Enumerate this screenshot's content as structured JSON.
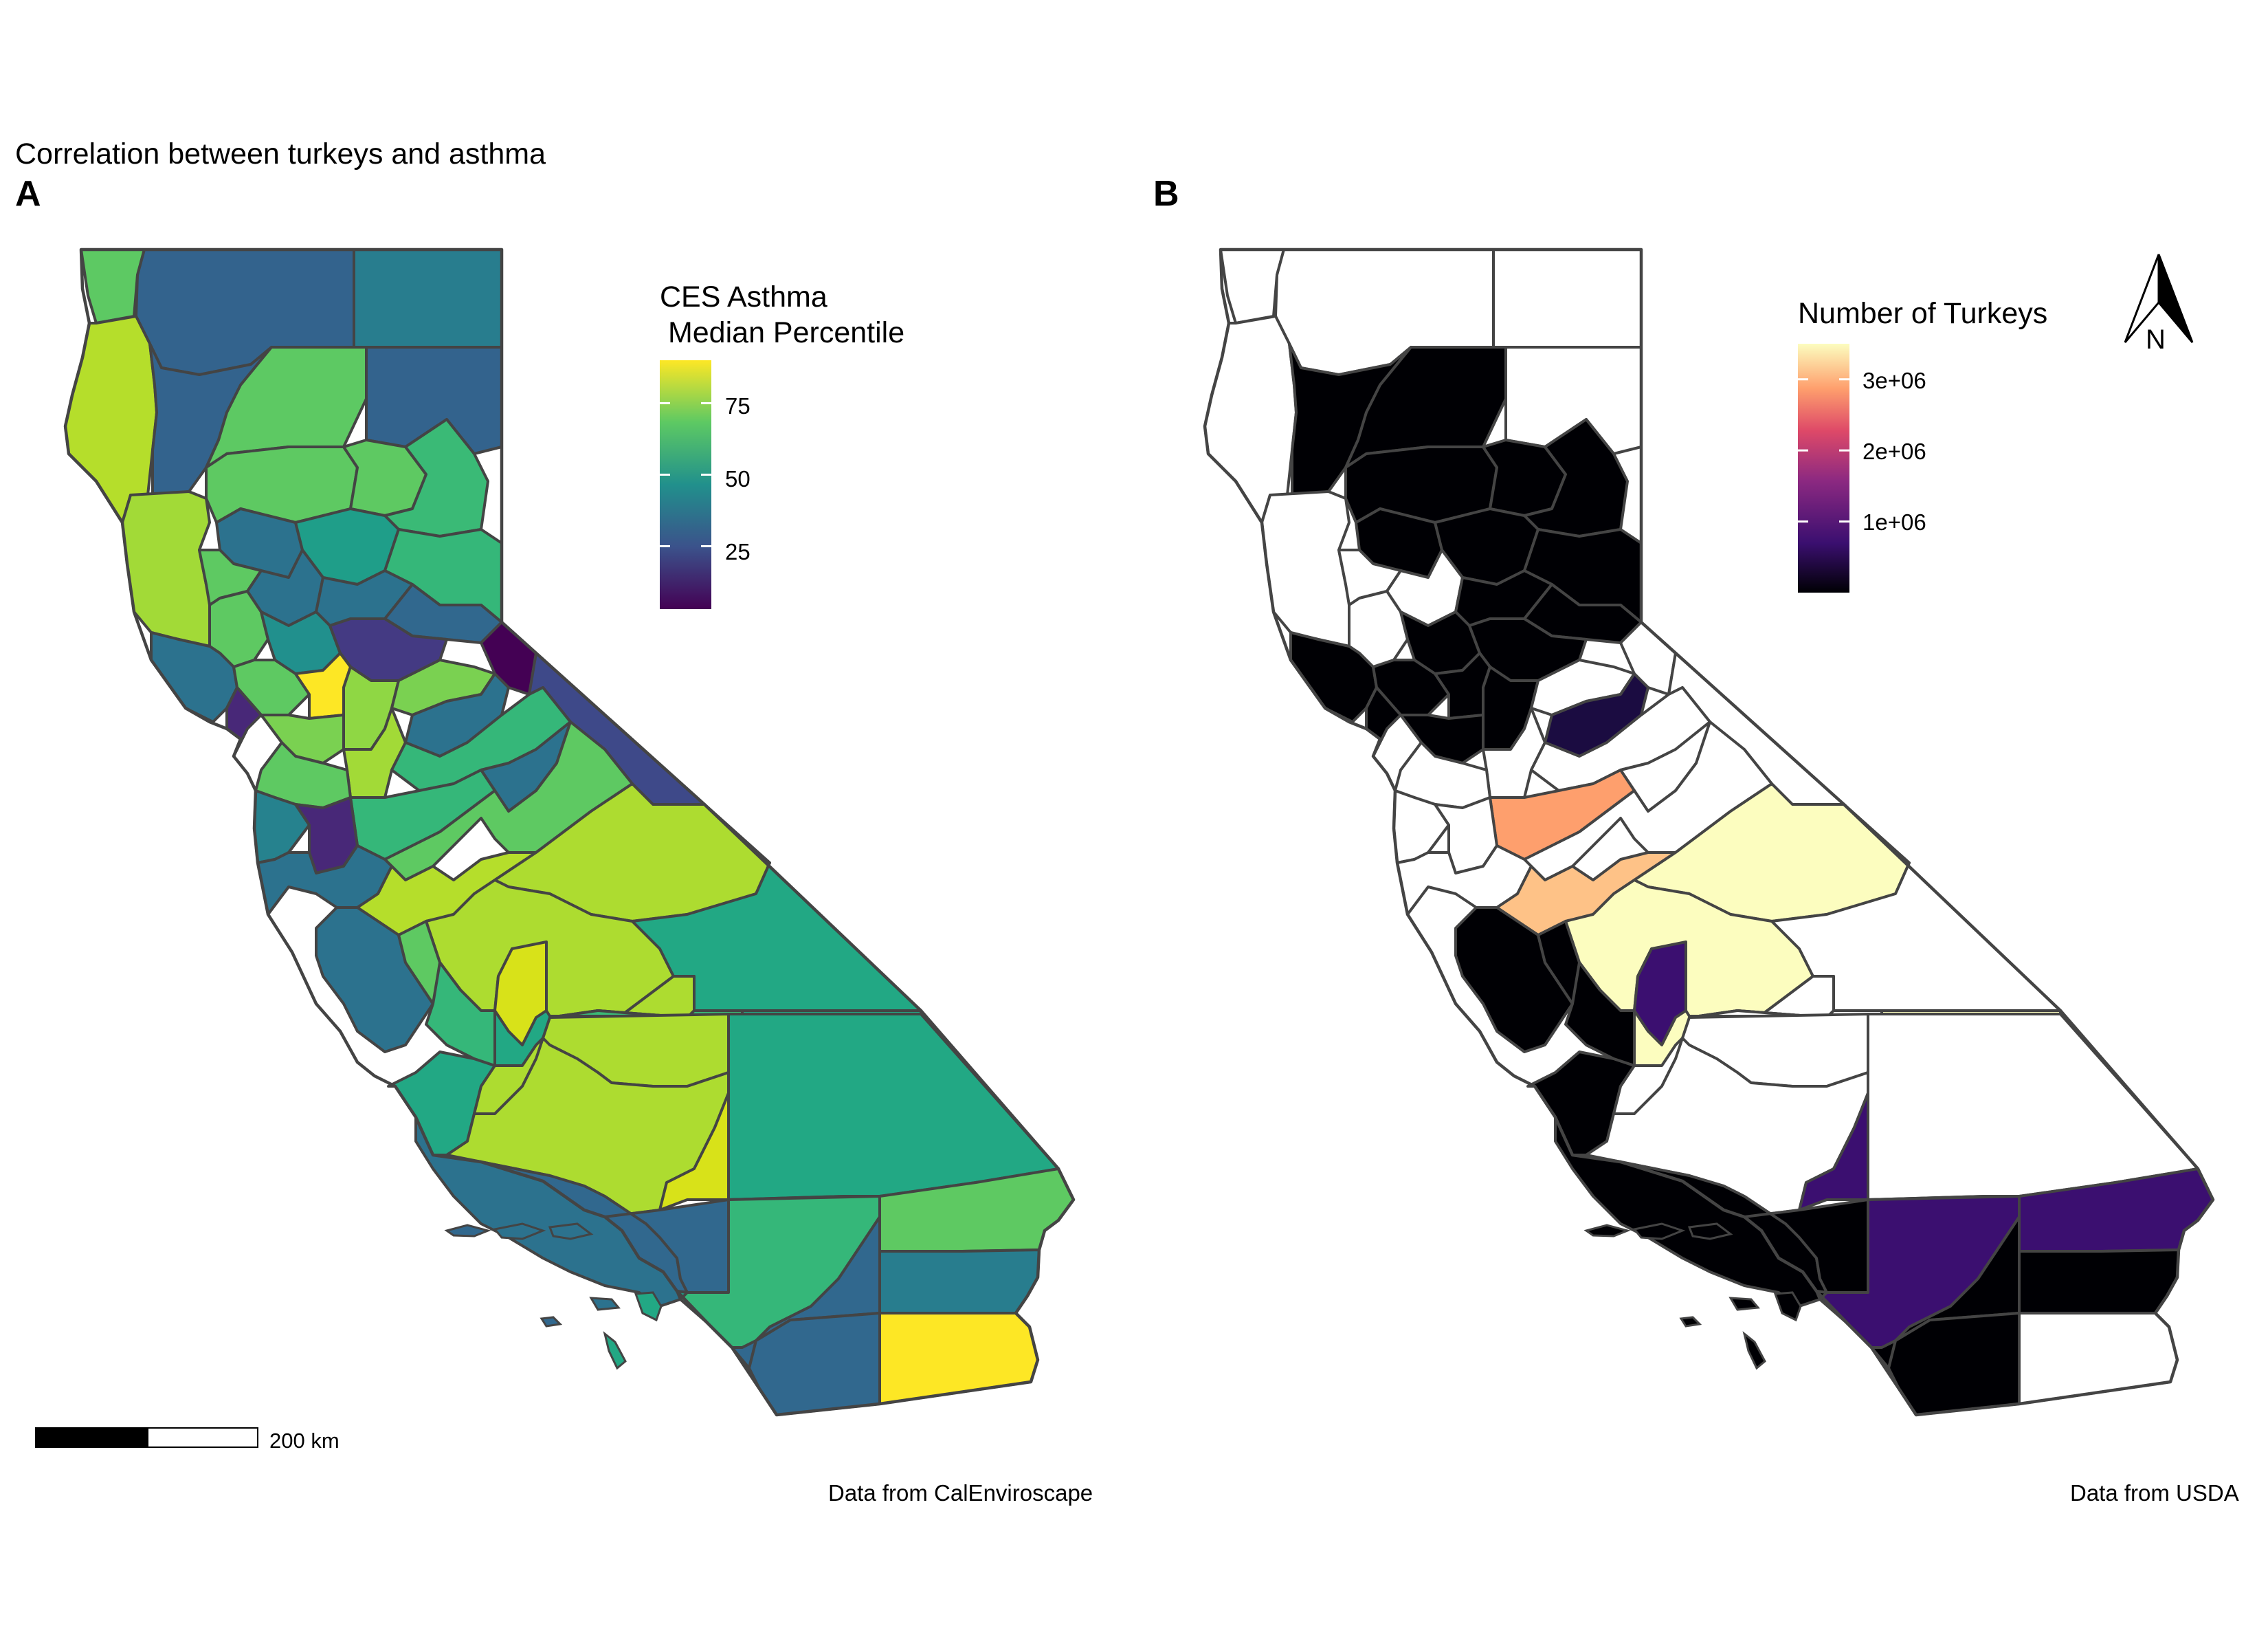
{
  "title": "Correlation between turkeys and asthma",
  "panels": [
    {
      "tag": "A",
      "legend_title_line1": "CES Asthma",
      "legend_title_line2": " Median Percentile",
      "legend_ticks": [
        "75",
        "50",
        "25"
      ],
      "legend_tick_values": [
        75,
        50,
        25
      ],
      "legend_range": [
        3,
        90
      ],
      "palette": "viridis",
      "caption": "Data from CalEnviroscape",
      "scale_bar_label": "200 km"
    },
    {
      "tag": "B",
      "legend_title": "Number of Turkeys",
      "legend_ticks": [
        "3e+06",
        "2e+06",
        "1e+06"
      ],
      "legend_tick_values": [
        3000000,
        2000000,
        1000000
      ],
      "legend_range": [
        0,
        3500000
      ],
      "palette": "magma",
      "no_data_color": "#ffffff",
      "caption": "Data from USDA",
      "north_arrow_label": "N"
    }
  ],
  "colors": {
    "viridis": [
      "#440154",
      "#3b528b",
      "#21908c",
      "#5dc963",
      "#fde725"
    ],
    "magma": [
      "#000004",
      "#3b0f70",
      "#8c2981",
      "#de4968",
      "#fe9f6d",
      "#fcfdbf"
    ],
    "county_border": "#444444"
  }
}
